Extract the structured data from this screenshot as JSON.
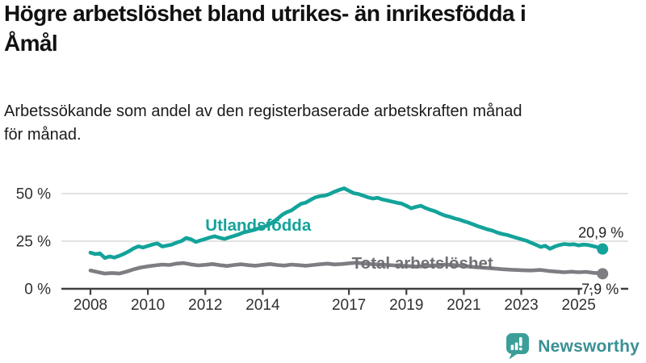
{
  "header": {
    "title_lines": [
      "Högre arbetslöshet bland utrikes- än inrikesfödda i",
      "Åmål"
    ],
    "subtitle_lines": [
      "Arbetssökande som andel av den registerbaserade arbetskraften månad",
      "för månad."
    ]
  },
  "chart_data": {
    "type": "line",
    "title": "Högre arbetslöshet bland utrikes- än inrikesfödda i Åmål",
    "subtitle": "Arbetssökande som andel av den registerbaserade arbetskraften månad för månad.",
    "xlabel": "",
    "ylabel": "",
    "xlim": [
      2007.0,
      2026.3
    ],
    "ylim": [
      0,
      55
    ],
    "grid": "horizontal",
    "x_ticks": [
      2008,
      2010,
      2012,
      2014,
      2017,
      2019,
      2021,
      2023,
      2025
    ],
    "y_ticks": [
      {
        "label": "0 %",
        "value": 0
      },
      {
        "label": "25 %",
        "value": 25
      },
      {
        "label": "50 %",
        "value": 50
      }
    ],
    "series": [
      {
        "name": "Total arbetslöshet",
        "color": "#7d7d82",
        "label_color": "#6f6f74",
        "end_label": "7,9 %",
        "end_value": 7.9,
        "label_at": [
          2017.1,
          10.6
        ],
        "points": [
          [
            2008.0,
            9.6
          ],
          [
            2008.25,
            8.8
          ],
          [
            2008.5,
            8.0
          ],
          [
            2008.75,
            8.3
          ],
          [
            2009.0,
            8.0
          ],
          [
            2009.25,
            9.0
          ],
          [
            2009.5,
            10.2
          ],
          [
            2009.75,
            11.2
          ],
          [
            2010.0,
            11.8
          ],
          [
            2010.25,
            12.3
          ],
          [
            2010.5,
            12.7
          ],
          [
            2010.75,
            12.5
          ],
          [
            2011.0,
            13.2
          ],
          [
            2011.25,
            13.5
          ],
          [
            2011.5,
            12.8
          ],
          [
            2011.75,
            12.3
          ],
          [
            2012.0,
            12.6
          ],
          [
            2012.25,
            13.0
          ],
          [
            2012.5,
            12.4
          ],
          [
            2012.75,
            12.0
          ],
          [
            2013.0,
            12.5
          ],
          [
            2013.25,
            12.9
          ],
          [
            2013.5,
            12.4
          ],
          [
            2013.75,
            12.1
          ],
          [
            2014.0,
            12.6
          ],
          [
            2014.25,
            13.0
          ],
          [
            2014.5,
            12.5
          ],
          [
            2014.75,
            12.2
          ],
          [
            2015.0,
            12.7
          ],
          [
            2015.25,
            12.4
          ],
          [
            2015.5,
            12.1
          ],
          [
            2015.75,
            12.5
          ],
          [
            2016.0,
            12.9
          ],
          [
            2016.25,
            13.2
          ],
          [
            2016.5,
            12.8
          ],
          [
            2016.75,
            13.0
          ],
          [
            2017.0,
            13.4
          ],
          [
            2017.25,
            13.7
          ],
          [
            2017.5,
            13.3
          ],
          [
            2017.75,
            13.0
          ],
          [
            2018.0,
            12.8
          ],
          [
            2018.33,
            12.5
          ],
          [
            2018.67,
            12.2
          ],
          [
            2019.0,
            12.0
          ],
          [
            2019.33,
            11.7
          ],
          [
            2019.67,
            11.9
          ],
          [
            2020.0,
            12.3
          ],
          [
            2020.33,
            12.7
          ],
          [
            2020.67,
            12.4
          ],
          [
            2021.0,
            12.0
          ],
          [
            2021.33,
            11.5
          ],
          [
            2021.67,
            11.1
          ],
          [
            2022.0,
            10.7
          ],
          [
            2022.33,
            10.3
          ],
          [
            2022.67,
            10.0
          ],
          [
            2023.0,
            9.8
          ],
          [
            2023.33,
            9.6
          ],
          [
            2023.67,
            9.9
          ],
          [
            2024.0,
            9.3
          ],
          [
            2024.25,
            9.0
          ],
          [
            2024.5,
            8.7
          ],
          [
            2024.75,
            9.0
          ],
          [
            2025.0,
            8.7
          ],
          [
            2025.25,
            8.9
          ],
          [
            2025.5,
            8.4
          ],
          [
            2025.67,
            8.2
          ],
          [
            2025.83,
            7.9
          ]
        ]
      },
      {
        "name": "Utlandsfödda",
        "color": "#13a39a",
        "label_color": "#13a39a",
        "end_label": "20,9 %",
        "end_value": 20.9,
        "label_at": [
          2012.0,
          30.5
        ],
        "points": [
          [
            2008.0,
            19.0
          ],
          [
            2008.17,
            18.2
          ],
          [
            2008.33,
            18.6
          ],
          [
            2008.5,
            16.2
          ],
          [
            2008.67,
            17.0
          ],
          [
            2008.83,
            16.4
          ],
          [
            2009.0,
            17.3
          ],
          [
            2009.17,
            18.4
          ],
          [
            2009.33,
            19.6
          ],
          [
            2009.5,
            21.2
          ],
          [
            2009.67,
            22.3
          ],
          [
            2009.83,
            21.7
          ],
          [
            2010.0,
            22.5
          ],
          [
            2010.17,
            23.3
          ],
          [
            2010.33,
            23.8
          ],
          [
            2010.5,
            22.2
          ],
          [
            2010.67,
            22.7
          ],
          [
            2010.83,
            23.2
          ],
          [
            2011.0,
            24.3
          ],
          [
            2011.17,
            25.1
          ],
          [
            2011.33,
            26.7
          ],
          [
            2011.5,
            26.0
          ],
          [
            2011.67,
            24.6
          ],
          [
            2011.83,
            25.4
          ],
          [
            2012.0,
            26.2
          ],
          [
            2012.17,
            27.0
          ],
          [
            2012.33,
            27.6
          ],
          [
            2012.5,
            26.8
          ],
          [
            2012.67,
            26.2
          ],
          [
            2012.83,
            27.0
          ],
          [
            2013.0,
            27.8
          ],
          [
            2013.17,
            28.6
          ],
          [
            2013.33,
            29.6
          ],
          [
            2013.5,
            30.2
          ],
          [
            2013.67,
            30.8
          ],
          [
            2013.83,
            31.6
          ],
          [
            2014.0,
            32.4
          ],
          [
            2014.17,
            33.4
          ],
          [
            2014.33,
            34.8
          ],
          [
            2014.5,
            36.6
          ],
          [
            2014.67,
            38.8
          ],
          [
            2014.83,
            40.2
          ],
          [
            2015.0,
            41.2
          ],
          [
            2015.17,
            43.0
          ],
          [
            2015.33,
            44.6
          ],
          [
            2015.5,
            45.3
          ],
          [
            2015.67,
            46.8
          ],
          [
            2015.83,
            48.0
          ],
          [
            2016.0,
            48.7
          ],
          [
            2016.17,
            49.0
          ],
          [
            2016.33,
            49.8
          ],
          [
            2016.5,
            51.0
          ],
          [
            2016.67,
            52.0
          ],
          [
            2016.83,
            52.8
          ],
          [
            2017.0,
            51.5
          ],
          [
            2017.17,
            50.2
          ],
          [
            2017.33,
            49.8
          ],
          [
            2017.5,
            48.9
          ],
          [
            2017.67,
            48.0
          ],
          [
            2017.83,
            47.4
          ],
          [
            2018.0,
            47.8
          ],
          [
            2018.17,
            46.9
          ],
          [
            2018.33,
            46.4
          ],
          [
            2018.5,
            45.8
          ],
          [
            2018.67,
            45.2
          ],
          [
            2018.83,
            44.8
          ],
          [
            2019.0,
            43.6
          ],
          [
            2019.17,
            42.3
          ],
          [
            2019.33,
            43.0
          ],
          [
            2019.5,
            43.6
          ],
          [
            2019.67,
            42.4
          ],
          [
            2019.83,
            41.5
          ],
          [
            2020.0,
            40.7
          ],
          [
            2020.17,
            39.5
          ],
          [
            2020.33,
            38.5
          ],
          [
            2020.5,
            37.9
          ],
          [
            2020.67,
            37.0
          ],
          [
            2020.83,
            36.4
          ],
          [
            2021.0,
            35.5
          ],
          [
            2021.17,
            34.7
          ],
          [
            2021.33,
            33.8
          ],
          [
            2021.5,
            32.8
          ],
          [
            2021.67,
            32.0
          ],
          [
            2021.83,
            31.2
          ],
          [
            2022.0,
            30.5
          ],
          [
            2022.17,
            29.5
          ],
          [
            2022.33,
            28.8
          ],
          [
            2022.5,
            28.3
          ],
          [
            2022.67,
            27.5
          ],
          [
            2022.83,
            26.8
          ],
          [
            2023.0,
            26.0
          ],
          [
            2023.17,
            25.3
          ],
          [
            2023.33,
            24.3
          ],
          [
            2023.5,
            23.2
          ],
          [
            2023.67,
            22.0
          ],
          [
            2023.83,
            22.6
          ],
          [
            2024.0,
            21.0
          ],
          [
            2024.17,
            22.2
          ],
          [
            2024.33,
            23.0
          ],
          [
            2024.5,
            23.5
          ],
          [
            2024.67,
            23.2
          ],
          [
            2024.83,
            23.4
          ],
          [
            2025.0,
            22.8
          ],
          [
            2025.17,
            23.2
          ],
          [
            2025.33,
            23.0
          ],
          [
            2025.5,
            22.4
          ],
          [
            2025.67,
            21.8
          ],
          [
            2025.83,
            20.9
          ]
        ]
      }
    ],
    "legend_position": "inline-labels"
  },
  "footer": {
    "brand": "Newsworthy",
    "logo_icon": "bar-chart-speech-bubble",
    "brand_color": "#3a9094",
    "logo_fill": "#3b9e98"
  },
  "colors": {
    "grid": "#d8d8d8",
    "axis": "#404040",
    "tick_text": "#303030"
  }
}
